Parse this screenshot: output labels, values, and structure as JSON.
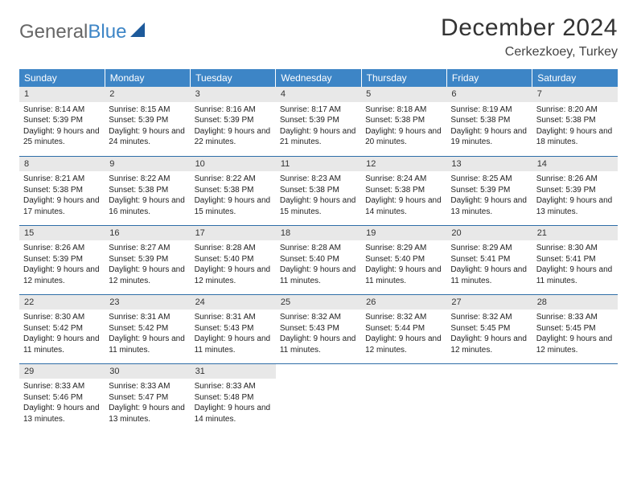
{
  "logo": {
    "text1": "General",
    "text2": "Blue"
  },
  "title": "December 2024",
  "location": "Cerkezkoey, Turkey",
  "colors": {
    "header_bg": "#3d85c6",
    "header_text": "#ffffff",
    "rule": "#2f6ea8",
    "daynum_bg": "#e8e8e8",
    "logo_gray": "#666666",
    "logo_blue": "#3d85c6",
    "triangle": "#1d5a9b"
  },
  "daysOfWeek": [
    "Sunday",
    "Monday",
    "Tuesday",
    "Wednesday",
    "Thursday",
    "Friday",
    "Saturday"
  ],
  "weeks": [
    [
      {
        "n": "1",
        "sr": "Sunrise: 8:14 AM",
        "ss": "Sunset: 5:39 PM",
        "dl": "Daylight: 9 hours and 25 minutes."
      },
      {
        "n": "2",
        "sr": "Sunrise: 8:15 AM",
        "ss": "Sunset: 5:39 PM",
        "dl": "Daylight: 9 hours and 24 minutes."
      },
      {
        "n": "3",
        "sr": "Sunrise: 8:16 AM",
        "ss": "Sunset: 5:39 PM",
        "dl": "Daylight: 9 hours and 22 minutes."
      },
      {
        "n": "4",
        "sr": "Sunrise: 8:17 AM",
        "ss": "Sunset: 5:39 PM",
        "dl": "Daylight: 9 hours and 21 minutes."
      },
      {
        "n": "5",
        "sr": "Sunrise: 8:18 AM",
        "ss": "Sunset: 5:38 PM",
        "dl": "Daylight: 9 hours and 20 minutes."
      },
      {
        "n": "6",
        "sr": "Sunrise: 8:19 AM",
        "ss": "Sunset: 5:38 PM",
        "dl": "Daylight: 9 hours and 19 minutes."
      },
      {
        "n": "7",
        "sr": "Sunrise: 8:20 AM",
        "ss": "Sunset: 5:38 PM",
        "dl": "Daylight: 9 hours and 18 minutes."
      }
    ],
    [
      {
        "n": "8",
        "sr": "Sunrise: 8:21 AM",
        "ss": "Sunset: 5:38 PM",
        "dl": "Daylight: 9 hours and 17 minutes."
      },
      {
        "n": "9",
        "sr": "Sunrise: 8:22 AM",
        "ss": "Sunset: 5:38 PM",
        "dl": "Daylight: 9 hours and 16 minutes."
      },
      {
        "n": "10",
        "sr": "Sunrise: 8:22 AM",
        "ss": "Sunset: 5:38 PM",
        "dl": "Daylight: 9 hours and 15 minutes."
      },
      {
        "n": "11",
        "sr": "Sunrise: 8:23 AM",
        "ss": "Sunset: 5:38 PM",
        "dl": "Daylight: 9 hours and 15 minutes."
      },
      {
        "n": "12",
        "sr": "Sunrise: 8:24 AM",
        "ss": "Sunset: 5:38 PM",
        "dl": "Daylight: 9 hours and 14 minutes."
      },
      {
        "n": "13",
        "sr": "Sunrise: 8:25 AM",
        "ss": "Sunset: 5:39 PM",
        "dl": "Daylight: 9 hours and 13 minutes."
      },
      {
        "n": "14",
        "sr": "Sunrise: 8:26 AM",
        "ss": "Sunset: 5:39 PM",
        "dl": "Daylight: 9 hours and 13 minutes."
      }
    ],
    [
      {
        "n": "15",
        "sr": "Sunrise: 8:26 AM",
        "ss": "Sunset: 5:39 PM",
        "dl": "Daylight: 9 hours and 12 minutes."
      },
      {
        "n": "16",
        "sr": "Sunrise: 8:27 AM",
        "ss": "Sunset: 5:39 PM",
        "dl": "Daylight: 9 hours and 12 minutes."
      },
      {
        "n": "17",
        "sr": "Sunrise: 8:28 AM",
        "ss": "Sunset: 5:40 PM",
        "dl": "Daylight: 9 hours and 12 minutes."
      },
      {
        "n": "18",
        "sr": "Sunrise: 8:28 AM",
        "ss": "Sunset: 5:40 PM",
        "dl": "Daylight: 9 hours and 11 minutes."
      },
      {
        "n": "19",
        "sr": "Sunrise: 8:29 AM",
        "ss": "Sunset: 5:40 PM",
        "dl": "Daylight: 9 hours and 11 minutes."
      },
      {
        "n": "20",
        "sr": "Sunrise: 8:29 AM",
        "ss": "Sunset: 5:41 PM",
        "dl": "Daylight: 9 hours and 11 minutes."
      },
      {
        "n": "21",
        "sr": "Sunrise: 8:30 AM",
        "ss": "Sunset: 5:41 PM",
        "dl": "Daylight: 9 hours and 11 minutes."
      }
    ],
    [
      {
        "n": "22",
        "sr": "Sunrise: 8:30 AM",
        "ss": "Sunset: 5:42 PM",
        "dl": "Daylight: 9 hours and 11 minutes."
      },
      {
        "n": "23",
        "sr": "Sunrise: 8:31 AM",
        "ss": "Sunset: 5:42 PM",
        "dl": "Daylight: 9 hours and 11 minutes."
      },
      {
        "n": "24",
        "sr": "Sunrise: 8:31 AM",
        "ss": "Sunset: 5:43 PM",
        "dl": "Daylight: 9 hours and 11 minutes."
      },
      {
        "n": "25",
        "sr": "Sunrise: 8:32 AM",
        "ss": "Sunset: 5:43 PM",
        "dl": "Daylight: 9 hours and 11 minutes."
      },
      {
        "n": "26",
        "sr": "Sunrise: 8:32 AM",
        "ss": "Sunset: 5:44 PM",
        "dl": "Daylight: 9 hours and 12 minutes."
      },
      {
        "n": "27",
        "sr": "Sunrise: 8:32 AM",
        "ss": "Sunset: 5:45 PM",
        "dl": "Daylight: 9 hours and 12 minutes."
      },
      {
        "n": "28",
        "sr": "Sunrise: 8:33 AM",
        "ss": "Sunset: 5:45 PM",
        "dl": "Daylight: 9 hours and 12 minutes."
      }
    ],
    [
      {
        "n": "29",
        "sr": "Sunrise: 8:33 AM",
        "ss": "Sunset: 5:46 PM",
        "dl": "Daylight: 9 hours and 13 minutes."
      },
      {
        "n": "30",
        "sr": "Sunrise: 8:33 AM",
        "ss": "Sunset: 5:47 PM",
        "dl": "Daylight: 9 hours and 13 minutes."
      },
      {
        "n": "31",
        "sr": "Sunrise: 8:33 AM",
        "ss": "Sunset: 5:48 PM",
        "dl": "Daylight: 9 hours and 14 minutes."
      },
      null,
      null,
      null,
      null
    ]
  ]
}
